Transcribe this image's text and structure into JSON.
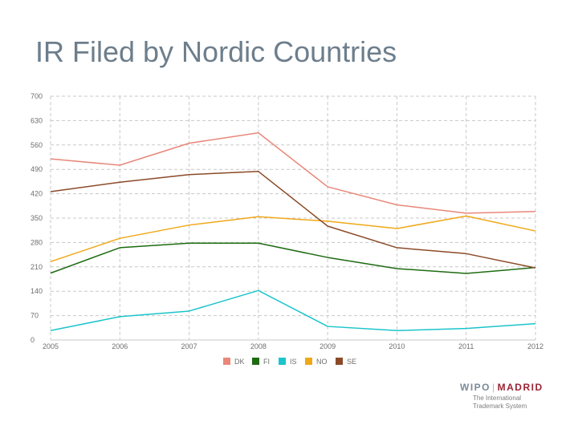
{
  "slide": {
    "title": "IR Filed by Nordic Countries"
  },
  "logo": {
    "wipo": "WIPO",
    "separator": "|",
    "madrid": "MADRID",
    "subtitle_line1": "The International",
    "subtitle_line2": "Trademark System"
  },
  "colors": {
    "title": "#6d7e8c",
    "DK": "#e8877a",
    "FI": "#1e6b12",
    "IS": "#1cc4cc",
    "NO": "#f0a818",
    "SE": "#8b4a28",
    "grid": "#c8c8c8"
  },
  "chart_data": {
    "type": "line",
    "title": "",
    "xlabel": "",
    "ylabel": "",
    "grid": true,
    "legend_position": "bottom",
    "x": [
      "2005",
      "2006",
      "2007",
      "2008",
      "2009",
      "2010",
      "2011",
      "2012"
    ],
    "ylim": [
      0,
      700
    ],
    "y_ticks": [
      "0",
      "70",
      "140",
      "210",
      "280",
      "350",
      "420",
      "490",
      "560",
      "630",
      "700"
    ],
    "series": [
      {
        "name": "DK",
        "color": "#e8877a",
        "values": [
          520,
          502,
          565,
          595,
          440,
          388,
          364,
          369
        ]
      },
      {
        "name": "FI",
        "color": "#1e6b12",
        "values": [
          192,
          265,
          278,
          278,
          237,
          205,
          191,
          208
        ]
      },
      {
        "name": "IS",
        "color": "#1cc4cc",
        "values": [
          27,
          67,
          83,
          142,
          39,
          27,
          33,
          47
        ]
      },
      {
        "name": "NO",
        "color": "#f0a818",
        "values": [
          225,
          292,
          330,
          354,
          341,
          320,
          356,
          313
        ]
      },
      {
        "name": "SE",
        "color": "#8b4a28",
        "values": [
          426,
          453,
          475,
          484,
          327,
          265,
          248,
          207
        ]
      }
    ]
  }
}
